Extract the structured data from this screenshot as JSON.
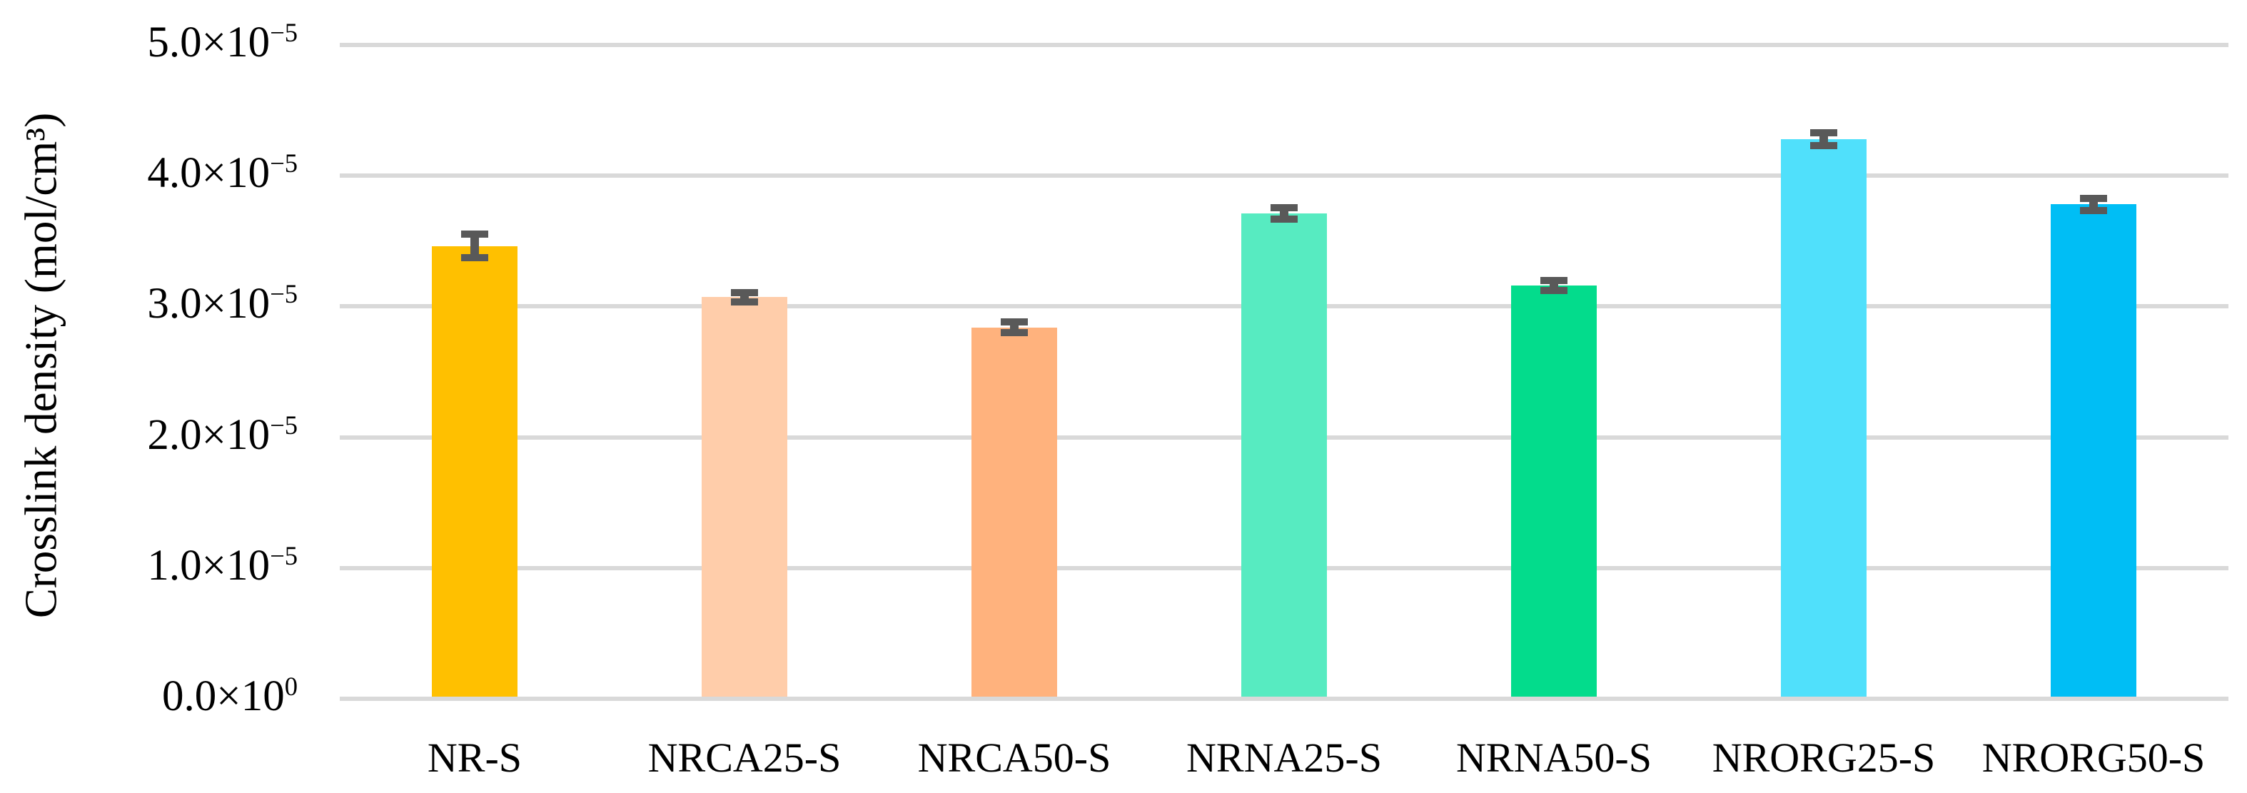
{
  "chart_data": {
    "type": "bar",
    "title": "",
    "xlabel": "",
    "ylabel": "Crosslink density (mol/cm³)",
    "categories": [
      "NR-S",
      "NRCA25-S",
      "NRCA50-S",
      "NRNA25-S",
      "NRNA50-S",
      "NRORG25-S",
      "NRORG50-S"
    ],
    "values": [
      3.46e-05,
      3.07e-05,
      2.84e-05,
      3.71e-05,
      3.16e-05,
      4.28e-05,
      3.78e-05
    ],
    "errors": [
      9e-07,
      3.5e-07,
      4e-07,
      4.5e-07,
      4e-07,
      5e-07,
      4.5e-07
    ],
    "bar_colors": [
      "#FFC000",
      "#FFCDAA",
      "#FFB27D",
      "#57EBC1",
      "#03DC8C",
      "#50E0FB",
      "#00BEF5"
    ],
    "error_bar_color": "#595959",
    "gridline_color": "#D9D9D9",
    "ylim": [
      0,
      5e-05
    ],
    "grid": true,
    "legend": false,
    "yticks": [
      {
        "value": 0,
        "text": "0.0×10",
        "sup": "0"
      },
      {
        "value": 1e-05,
        "text": "1.0×10",
        "sup": "−5"
      },
      {
        "value": 2e-05,
        "text": "2.0×10",
        "sup": "−5"
      },
      {
        "value": 3e-05,
        "text": "3.0×10",
        "sup": "−5"
      },
      {
        "value": 4e-05,
        "text": "4.0×10",
        "sup": "−5"
      },
      {
        "value": 5e-05,
        "text": "5.0×10",
        "sup": "−5"
      }
    ]
  }
}
